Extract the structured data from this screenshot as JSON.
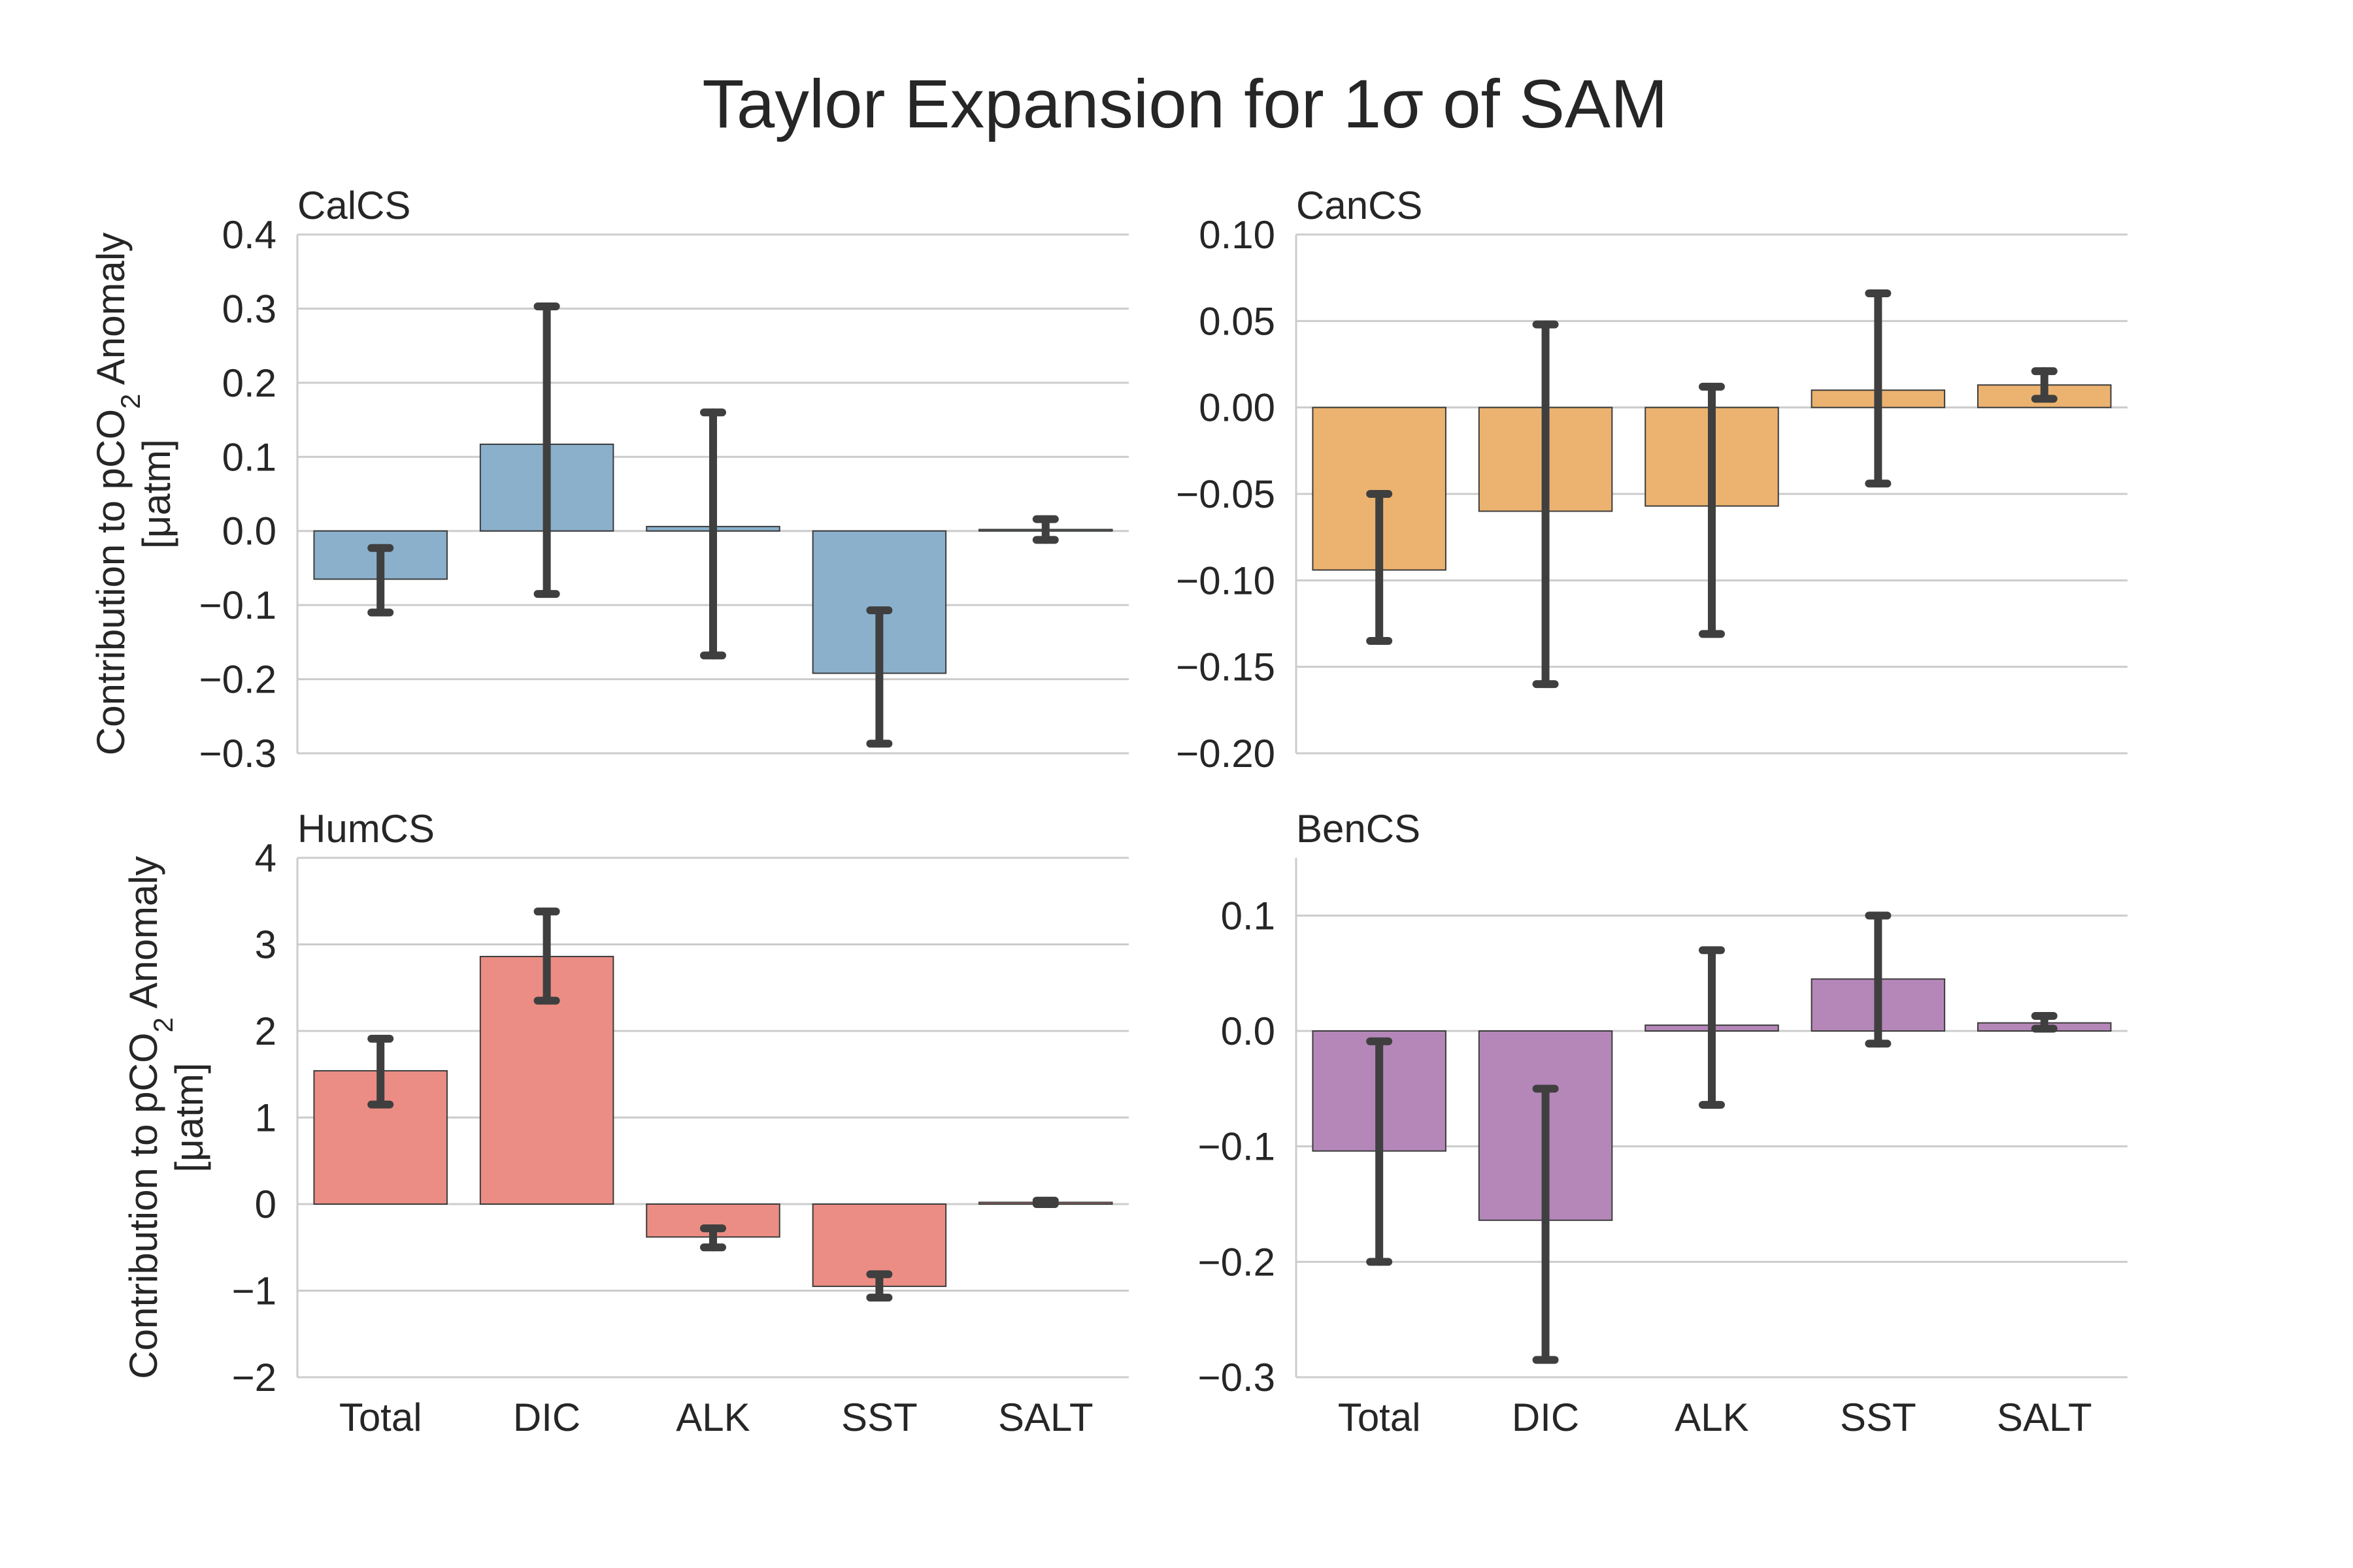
{
  "title": "Taylor Expansion for 1σ of SAM",
  "ylabel": {
    "line1": "Contribution to pCO",
    "subscript": "2",
    "line1_suffix": " Anomaly",
    "line2": "[μatm]"
  },
  "chart_data": [
    {
      "type": "bar",
      "title": "CalCS",
      "color": "#8ab0cc",
      "categories": [
        "Total",
        "DIC",
        "ALK",
        "SST",
        "SALT"
      ],
      "values": [
        -0.065,
        0.117,
        0.006,
        -0.192,
        0.002
      ],
      "error_low": [
        -0.11,
        -0.085,
        -0.168,
        -0.287,
        -0.012
      ],
      "error_high": [
        -0.023,
        0.303,
        0.16,
        -0.107,
        0.016
      ],
      "ylim": [
        -0.3,
        0.4
      ],
      "yticks": [
        -0.3,
        -0.2,
        -0.1,
        0.0,
        0.1,
        0.2,
        0.3,
        0.4
      ],
      "yticklabels": [
        "−0.3",
        "−0.2",
        "−0.1",
        "0.0",
        "0.1",
        "0.2",
        "0.3",
        "0.4"
      ],
      "show_xticklabels": false,
      "show_ylabel": true,
      "grid": true
    },
    {
      "type": "bar",
      "title": "CanCS",
      "color": "#ecb370",
      "categories": [
        "Total",
        "DIC",
        "ALK",
        "SST",
        "SALT"
      ],
      "values": [
        -0.094,
        -0.06,
        -0.057,
        0.01,
        0.013
      ],
      "error_low": [
        -0.135,
        -0.16,
        -0.131,
        -0.044,
        0.005
      ],
      "error_high": [
        -0.05,
        0.048,
        0.012,
        0.066,
        0.021
      ],
      "ylim": [
        -0.2,
        0.1
      ],
      "yticks": [
        -0.2,
        -0.15,
        -0.1,
        -0.05,
        0.0,
        0.05,
        0.1
      ],
      "yticklabels": [
        "−0.20",
        "−0.15",
        "−0.10",
        "−0.05",
        "0.00",
        "0.05",
        "0.10"
      ],
      "show_xticklabels": false,
      "show_ylabel": false,
      "grid": true
    },
    {
      "type": "bar",
      "title": "HumCS",
      "color": "#eb8d84",
      "categories": [
        "Total",
        "DIC",
        "ALK",
        "SST",
        "SALT"
      ],
      "values": [
        1.54,
        2.86,
        -0.38,
        -0.95,
        0.02
      ],
      "error_low": [
        1.15,
        2.35,
        -0.5,
        -1.08,
        0.0
      ],
      "error_high": [
        1.91,
        3.38,
        -0.28,
        -0.81,
        0.04
      ],
      "ylim": [
        -2,
        4
      ],
      "yticks": [
        -2,
        -1,
        0,
        1,
        2,
        3,
        4
      ],
      "yticklabels": [
        "−2",
        "−1",
        "0",
        "1",
        "2",
        "3",
        "4"
      ],
      "show_xticklabels": true,
      "show_ylabel": true,
      "grid": true
    },
    {
      "type": "bar",
      "title": "BenCS",
      "color": "#b587b9",
      "categories": [
        "Total",
        "DIC",
        "ALK",
        "SST",
        "SALT"
      ],
      "values": [
        -0.104,
        -0.164,
        0.005,
        0.045,
        0.007
      ],
      "error_low": [
        -0.2,
        -0.285,
        -0.064,
        -0.011,
        0.002
      ],
      "error_high": [
        -0.009,
        -0.05,
        0.07,
        0.1,
        0.013
      ],
      "ylim": [
        -0.3,
        0.15
      ],
      "yticks": [
        -0.3,
        -0.2,
        -0.1,
        0.0,
        0.1
      ],
      "yticklabels": [
        "−0.3",
        "−0.2",
        "−0.1",
        "0.0",
        "0.1"
      ],
      "show_xticklabels": true,
      "show_ylabel": false,
      "grid": true
    }
  ]
}
